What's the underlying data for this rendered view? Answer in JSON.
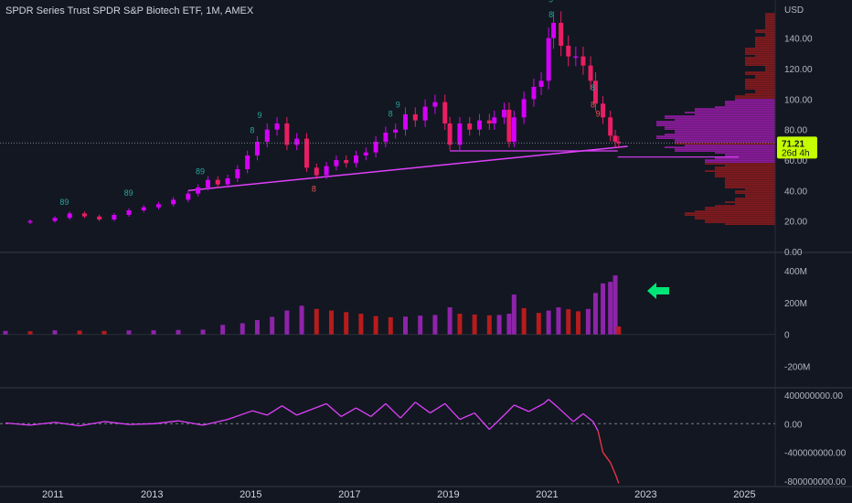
{
  "header": {
    "title": "SPDR Series Trust SPDR S&P Biotech ETF, 1M, AMEX"
  },
  "price_panel": {
    "currency": "USD",
    "last_price": "71.21",
    "countdown": "26d 4h",
    "sequential_labels": [
      "89",
      "89",
      "89",
      "8",
      "9",
      "8",
      "9",
      "9",
      "8",
      "8"
    ],
    "red_sequential_labels": [
      "8",
      "8",
      "9"
    ]
  },
  "volume_panel": {
    "arrow_note": "green-left-arrow"
  },
  "colors": {
    "background": "#131722",
    "candle_up": "#d500f9",
    "candle_down": "#e91e63",
    "volume_up": "#8e24aa",
    "volume_down": "#b71c1c",
    "trendline": "#e040fb",
    "profile_dark": "#b71c1c",
    "profile_bright": "#c51dd6",
    "last_price_label": "#c6ff00",
    "arrow": "#00e676",
    "oscillator_line": "#e040fb",
    "oscillator_neg": "#f23645"
  },
  "chart_data": [
    {
      "type": "candlestick",
      "title": "SPDR Series Trust SPDR S&P Biotech ETF, 1M, AMEX",
      "ylabel": "USD",
      "ylim": [
        0,
        165
      ],
      "yticks": [
        "0.00",
        "20.00",
        "40.00",
        "60.00",
        "80.00",
        "100.00",
        "120.00",
        "140.00"
      ],
      "xticks": [
        "2011",
        "2013",
        "2015",
        "2017",
        "2019",
        "2021",
        "2023",
        "2025"
      ],
      "x_range": [
        2010.0,
        2025.7
      ],
      "close_points": [
        [
          2010.0,
          19
        ],
        [
          2010.5,
          20
        ],
        [
          2011.0,
          22
        ],
        [
          2011.3,
          25
        ],
        [
          2011.6,
          23
        ],
        [
          2011.9,
          21
        ],
        [
          2012.2,
          24
        ],
        [
          2012.5,
          27
        ],
        [
          2012.8,
          29
        ],
        [
          2013.1,
          31
        ],
        [
          2013.4,
          34
        ],
        [
          2013.7,
          38
        ],
        [
          2013.9,
          42
        ],
        [
          2014.1,
          47
        ],
        [
          2014.3,
          44
        ],
        [
          2014.5,
          48
        ],
        [
          2014.7,
          54
        ],
        [
          2014.9,
          63
        ],
        [
          2015.1,
          72
        ],
        [
          2015.3,
          80
        ],
        [
          2015.5,
          84
        ],
        [
          2015.7,
          70
        ],
        [
          2015.9,
          74
        ],
        [
          2016.1,
          55
        ],
        [
          2016.3,
          50
        ],
        [
          2016.5,
          56
        ],
        [
          2016.7,
          60
        ],
        [
          2016.9,
          58
        ],
        [
          2017.1,
          63
        ],
        [
          2017.3,
          65
        ],
        [
          2017.5,
          72
        ],
        [
          2017.7,
          78
        ],
        [
          2017.9,
          80
        ],
        [
          2018.1,
          90
        ],
        [
          2018.3,
          86
        ],
        [
          2018.5,
          95
        ],
        [
          2018.7,
          98
        ],
        [
          2018.9,
          84
        ],
        [
          2019.0,
          70
        ],
        [
          2019.2,
          84
        ],
        [
          2019.4,
          80
        ],
        [
          2019.6,
          86
        ],
        [
          2019.8,
          84
        ],
        [
          2019.9,
          88
        ],
        [
          2020.1,
          93
        ],
        [
          2020.2,
          72
        ],
        [
          2020.3,
          88
        ],
        [
          2020.5,
          100
        ],
        [
          2020.7,
          108
        ],
        [
          2020.85,
          112
        ],
        [
          2021.0,
          140
        ],
        [
          2021.1,
          150
        ],
        [
          2021.25,
          135
        ],
        [
          2021.4,
          128
        ],
        [
          2021.55,
          128
        ],
        [
          2021.7,
          122
        ],
        [
          2021.85,
          112
        ],
        [
          2021.95,
          97
        ],
        [
          2022.1,
          88
        ],
        [
          2022.25,
          76
        ],
        [
          2022.35,
          72
        ],
        [
          2022.42,
          71.21
        ]
      ],
      "support_line": [
        [
          2013.7,
          40
        ],
        [
          2022.6,
          69
        ]
      ],
      "horizontal_line": [
        [
          2019.0,
          66
        ],
        [
          2022.4,
          66
        ]
      ],
      "profile_line_price": 62
    },
    {
      "type": "bar",
      "title": "",
      "ylim": [
        -300,
        480
      ],
      "yticks": [
        "400M",
        "200M",
        "0",
        "-200M"
      ],
      "x_range": [
        2010.0,
        2025.7
      ],
      "points": [
        [
          2010.0,
          22
        ],
        [
          2010.5,
          20
        ],
        [
          2011.0,
          26
        ],
        [
          2011.5,
          24
        ],
        [
          2012.0,
          22
        ],
        [
          2012.5,
          25
        ],
        [
          2013.0,
          26
        ],
        [
          2013.5,
          28
        ],
        [
          2014.0,
          30
        ],
        [
          2014.4,
          60
        ],
        [
          2014.8,
          70
        ],
        [
          2015.1,
          90
        ],
        [
          2015.4,
          110
        ],
        [
          2015.7,
          150
        ],
        [
          2016.0,
          180
        ],
        [
          2016.3,
          160
        ],
        [
          2016.6,
          150
        ],
        [
          2016.9,
          140
        ],
        [
          2017.2,
          130
        ],
        [
          2017.5,
          115
        ],
        [
          2017.8,
          108
        ],
        [
          2018.1,
          112
        ],
        [
          2018.4,
          118
        ],
        [
          2018.7,
          122
        ],
        [
          2019.0,
          170
        ],
        [
          2019.2,
          130
        ],
        [
          2019.5,
          125
        ],
        [
          2019.8,
          120
        ],
        [
          2020.0,
          122
        ],
        [
          2020.2,
          130
        ],
        [
          2020.3,
          250
        ],
        [
          2020.5,
          165
        ],
        [
          2020.8,
          135
        ],
        [
          2021.0,
          150
        ],
        [
          2021.2,
          170
        ],
        [
          2021.4,
          158
        ],
        [
          2021.6,
          145
        ],
        [
          2021.8,
          160
        ],
        [
          2021.95,
          260
        ],
        [
          2022.1,
          320
        ],
        [
          2022.25,
          330
        ],
        [
          2022.35,
          370
        ],
        [
          2022.42,
          50
        ]
      ]
    },
    {
      "type": "line",
      "title": "",
      "ylim": [
        -850000000,
        450000000
      ],
      "yticks": [
        "400000000.00",
        "0.00",
        "-400000000.00",
        "-800000000.00"
      ],
      "x_range": [
        2010.0,
        2025.7
      ],
      "points": [
        [
          2010.0,
          10000000
        ],
        [
          2010.5,
          -20000000
        ],
        [
          2011.0,
          20000000
        ],
        [
          2011.5,
          -30000000
        ],
        [
          2012.0,
          30000000
        ],
        [
          2012.5,
          -10000000
        ],
        [
          2013.0,
          0
        ],
        [
          2013.5,
          40000000
        ],
        [
          2014.0,
          -20000000
        ],
        [
          2014.5,
          60000000
        ],
        [
          2015.0,
          180000000
        ],
        [
          2015.3,
          120000000
        ],
        [
          2015.6,
          250000000
        ],
        [
          2015.9,
          120000000
        ],
        [
          2016.2,
          200000000
        ],
        [
          2016.5,
          280000000
        ],
        [
          2016.8,
          100000000
        ],
        [
          2017.1,
          220000000
        ],
        [
          2017.4,
          100000000
        ],
        [
          2017.7,
          280000000
        ],
        [
          2018.0,
          80000000
        ],
        [
          2018.3,
          300000000
        ],
        [
          2018.6,
          150000000
        ],
        [
          2018.9,
          280000000
        ],
        [
          2019.2,
          60000000
        ],
        [
          2019.5,
          150000000
        ],
        [
          2019.8,
          -80000000
        ],
        [
          2020.1,
          120000000
        ],
        [
          2020.3,
          260000000
        ],
        [
          2020.6,
          170000000
        ],
        [
          2020.9,
          280000000
        ],
        [
          2021.0,
          340000000
        ],
        [
          2021.2,
          220000000
        ],
        [
          2021.5,
          30000000
        ],
        [
          2021.7,
          140000000
        ],
        [
          2021.9,
          30000000
        ],
        [
          2022.0,
          -100000000
        ],
        [
          2022.1,
          -400000000
        ],
        [
          2022.25,
          -540000000
        ],
        [
          2022.35,
          -700000000
        ],
        [
          2022.42,
          -830000000
        ]
      ]
    }
  ]
}
